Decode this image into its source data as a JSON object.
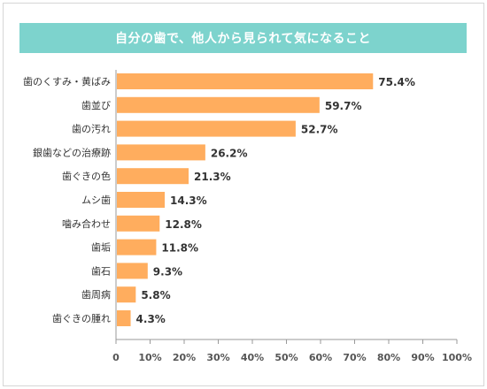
{
  "title": "自分の歯で、他人から見られて気になること",
  "colors": {
    "title_bg": "#7dd3cd",
    "bar": "#ffad5e",
    "axis": "#999999",
    "grid": "#dddddd"
  },
  "chart_data": {
    "type": "bar",
    "orientation": "horizontal",
    "title": "自分の歯で、他人から見られて気になること",
    "categories": [
      "歯のくすみ・黄ばみ",
      "歯並び",
      "歯の汚れ",
      "銀歯などの治療跡",
      "歯ぐきの色",
      "ムシ歯",
      "噛み合わせ",
      "歯垢",
      "歯石",
      "歯周病",
      "歯ぐきの腫れ"
    ],
    "values": [
      75.4,
      59.7,
      52.7,
      26.2,
      21.3,
      14.3,
      12.8,
      11.8,
      9.3,
      5.8,
      4.3
    ],
    "value_labels": [
      "75.4%",
      "59.7%",
      "52.7%",
      "26.2%",
      "21.3%",
      "14.3%",
      "12.8%",
      "11.8%",
      "9.3%",
      "5.8%",
      "4.3%"
    ],
    "xlim": [
      0,
      100
    ],
    "xticks": [
      "0",
      "10%",
      "20%",
      "30%",
      "40%",
      "50%",
      "60%",
      "70%",
      "80%",
      "90%",
      "100%"
    ],
    "grid": false,
    "legend": "none"
  }
}
